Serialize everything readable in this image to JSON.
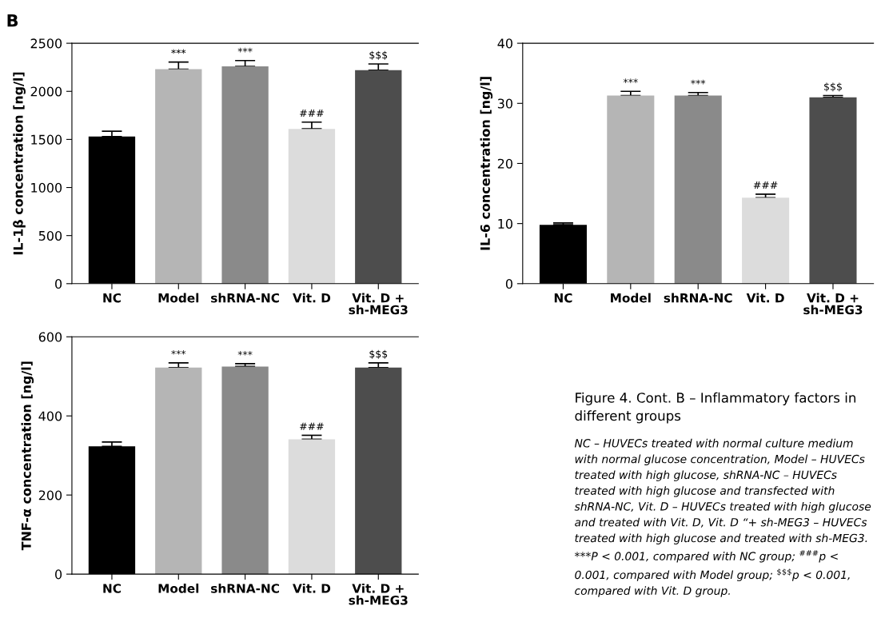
{
  "chart_data": [
    {
      "type": "bar",
      "ylabel": "IL-1β concentration [ng/l]",
      "categories": [
        "NC",
        "Model",
        "shRNA-NC",
        "Vit. D",
        "Vit. D +\nsh-MEG3"
      ],
      "values": [
        1530,
        2230,
        2260,
        1610,
        2220
      ],
      "colors": [
        "#000000",
        "#b5b5b5",
        "#8a8a8a",
        "#dcdcdc",
        "#4d4d4d"
      ],
      "errors": [
        [
          1530,
          1585
        ],
        [
          2230,
          2305
        ],
        [
          2260,
          2320
        ],
        [
          1610,
          1680
        ],
        [
          2220,
          2285
        ]
      ],
      "ylim": [
        0,
        2500
      ],
      "yticks": [
        0,
        500,
        1000,
        1500,
        2000,
        2500
      ],
      "grid": false,
      "annotations": [
        "B",
        {
          "text": "***",
          "x": "Model",
          "y": 2305
        },
        {
          "text": "***",
          "x": "shRNA-NC",
          "y": 2320
        },
        {
          "text": "###",
          "x": "Vit. D",
          "y": 1680
        },
        {
          "text": "$$$",
          "x": "Vit. D +\nsh-MEG3",
          "y": 2285
        }
      ]
    },
    {
      "type": "bar",
      "ylabel": "IL-6 concentration [ng/l]",
      "categories": [
        "NC",
        "Model",
        "shRNA-NC",
        "Vit. D",
        "Vit. D +\nsh-MEG3"
      ],
      "values": [
        9.8,
        31.3,
        31.3,
        14.3,
        31.0
      ],
      "colors": [
        "#000000",
        "#b5b5b5",
        "#8a8a8a",
        "#dcdcdc",
        "#4d4d4d"
      ],
      "errors": [
        [
          9.8,
          10.1
        ],
        [
          31.3,
          32.0
        ],
        [
          31.3,
          31.8
        ],
        [
          14.3,
          14.9
        ],
        [
          31.0,
          31.3
        ]
      ],
      "ylim": [
        0,
        40
      ],
      "yticks": [
        0,
        10,
        20,
        30,
        40
      ],
      "grid": false,
      "annotations": [
        {
          "text": "***",
          "x": "Model",
          "y": 32.0
        },
        {
          "text": "***",
          "x": "shRNA-NC",
          "y": 31.8
        },
        {
          "text": "###",
          "x": "Vit. D",
          "y": 14.9
        },
        {
          "text": "$$$",
          "x": "Vit. D +\nsh-MEG3",
          "y": 31.3
        }
      ]
    },
    {
      "type": "bar",
      "ylabel": "TNF-α concentration [ng/l]",
      "categories": [
        "NC",
        "Model",
        "shRNA-NC",
        "Vit. D",
        "Vit. D +\nsh-MEG3"
      ],
      "values": [
        323,
        522,
        525,
        341,
        522
      ],
      "colors": [
        "#000000",
        "#b5b5b5",
        "#8a8a8a",
        "#dcdcdc",
        "#4d4d4d"
      ],
      "errors": [
        [
          323,
          334
        ],
        [
          522,
          534
        ],
        [
          525,
          532
        ],
        [
          341,
          351
        ],
        [
          522,
          534
        ]
      ],
      "ylim": [
        0,
        600
      ],
      "yticks": [
        0,
        200,
        400,
        600
      ],
      "grid": false,
      "annotations": [
        {
          "text": "***",
          "x": "Model",
          "y": 534
        },
        {
          "text": "***",
          "x": "shRNA-NC",
          "y": 532
        },
        {
          "text": "###",
          "x": "Vit. D",
          "y": 351
        },
        {
          "text": "$$$",
          "x": "Vit. D +\nsh-MEG3",
          "y": 534
        }
      ]
    },
    {
      "type": "other",
      "title": "Figure 4. Cont. B – Inflammatory factors in different groups",
      "annotations": [
        "NC – HUVECs treated with normal culture medium with normal glucose concentration, Model – HUVECs treated with high glucose, shRNA-NC – HUVECs treated with high glucose and transfected with shRNA-NC, Vit. D – HUVECs treated with high glucose and treated with Vit. D, Vit. D “+ sh-MEG3 – HUVECs treated with high glucose and treated with sh-MEG3. ***P < 0.001, compared with NC group; $^{###}$p < 0.001, compared with Model group; $^{$$$}$p < 0.001, compared with Vit. D group."
      ]
    }
  ]
}
